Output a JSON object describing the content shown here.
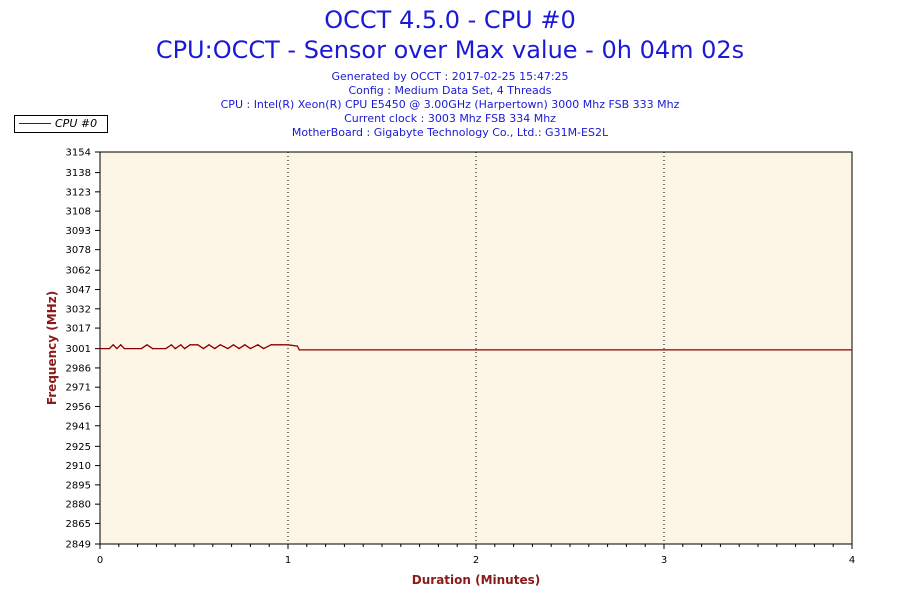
{
  "header": {
    "title": "OCCT 4.5.0 - CPU #0",
    "subtitle": "CPU:OCCT - Sensor over Max value - 0h 04m 02s",
    "info_lines": [
      "Generated by OCCT : 2017-02-25 15:47:25",
      "Config : Medium Data Set, 4 Threads",
      "CPU : Intel(R) Xeon(R) CPU E5450 @ 3.00GHz (Harpertown) 3000 Mhz FSB 333 Mhz",
      "Current clock : 3003 Mhz FSB 334 Mhz",
      "MotherBoard : Gigabyte Technology Co., Ltd.: G31M-ES2L"
    ]
  },
  "colors": {
    "plot_background": "#fdf5e6",
    "series": "#8b0000",
    "axis_label": "#8b1a1a",
    "title": "#1a1ad6"
  },
  "chart_data": {
    "type": "line",
    "xlabel": "Duration (Minutes)",
    "ylabel": "Frequency (MHz)",
    "xlim": [
      0,
      4
    ],
    "ylim": [
      2849,
      3154
    ],
    "xticks": [
      "0",
      "1",
      "2",
      "3",
      "4"
    ],
    "yticks": [
      "3154",
      "3138",
      "3123",
      "3108",
      "3093",
      "3078",
      "3062",
      "3047",
      "3032",
      "3017",
      "3001",
      "2986",
      "2971",
      "2956",
      "2941",
      "2925",
      "2910",
      "2895",
      "2880",
      "2865",
      "2849"
    ],
    "grid": "vertical dotted",
    "legend_position": "top-left",
    "series": [
      {
        "name": "CPU #0",
        "x": [
          0,
          0.05,
          0.07,
          0.09,
          0.11,
          0.13,
          0.17,
          0.22,
          0.25,
          0.28,
          0.35,
          0.38,
          0.4,
          0.43,
          0.45,
          0.48,
          0.52,
          0.55,
          0.58,
          0.61,
          0.64,
          0.68,
          0.71,
          0.74,
          0.77,
          0.8,
          0.84,
          0.87,
          0.91,
          0.94,
          0.96,
          1.0,
          1.05,
          1.06,
          1.5,
          2.0,
          2.5,
          3.0,
          3.5,
          4.0
        ],
        "y": [
          3001,
          3001,
          3004,
          3001,
          3004,
          3001,
          3001,
          3001,
          3004,
          3001,
          3001,
          3004,
          3001,
          3004,
          3001,
          3004,
          3004,
          3001,
          3004,
          3001,
          3004,
          3001,
          3004,
          3001,
          3004,
          3001,
          3004,
          3001,
          3004,
          3004,
          3004,
          3004,
          3003,
          3000,
          3000,
          3000,
          3000,
          3000,
          3000,
          3000
        ]
      }
    ]
  }
}
